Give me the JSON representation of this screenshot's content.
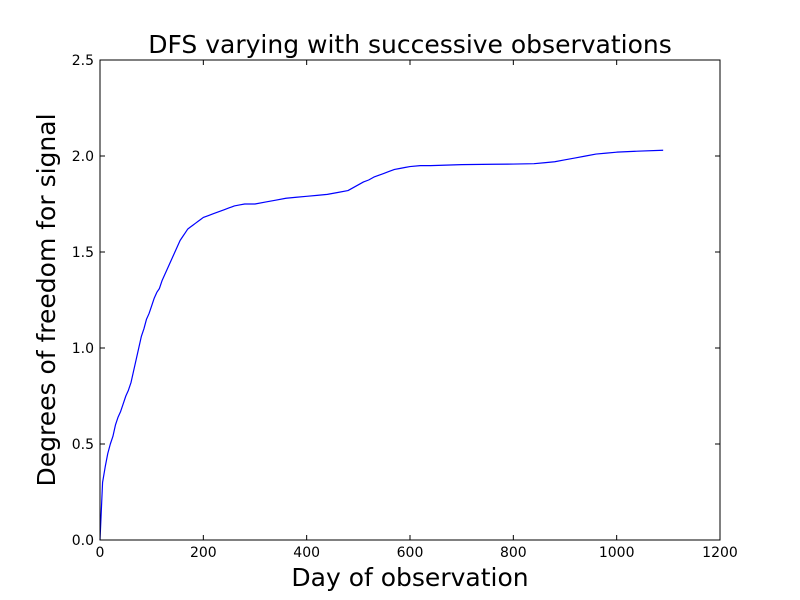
{
  "chart_data": {
    "type": "line",
    "title": "DFS varying with successive observations",
    "xlabel": "Day of observation",
    "ylabel": "Degrees of freedom for signal",
    "xlim": [
      0,
      1200
    ],
    "ylim": [
      0,
      2.5
    ],
    "xticks": [
      0,
      200,
      400,
      600,
      800,
      1000,
      1200
    ],
    "xtick_labels": [
      "0",
      "200",
      "400",
      "600",
      "800",
      "1000",
      "1200"
    ],
    "yticks": [
      0,
      0.5,
      1.0,
      1.5,
      2.0,
      2.5
    ],
    "ytick_labels": [
      "0.0",
      "0.5",
      "1.0",
      "1.5",
      "2.0",
      "2.5"
    ],
    "grid": false,
    "colors": {
      "line": "#0000ff",
      "axes": "#000000",
      "background": "#ffffff"
    },
    "series": [
      {
        "x": [
          0,
          2,
          5,
          10,
          15,
          20,
          25,
          30,
          35,
          40,
          45,
          50,
          55,
          60,
          65,
          70,
          75,
          80,
          85,
          90,
          95,
          100,
          105,
          110,
          115,
          120,
          125,
          130,
          135,
          140,
          145,
          150,
          155,
          160,
          165,
          170,
          175,
          180,
          185,
          190,
          195,
          200,
          210,
          220,
          230,
          240,
          250,
          255,
          260,
          270,
          280,
          300,
          320,
          340,
          360,
          380,
          400,
          420,
          440,
          460,
          480,
          490,
          500,
          510,
          520,
          530,
          540,
          550,
          560,
          570,
          580,
          590,
          600,
          620,
          640,
          700,
          760,
          800,
          840,
          860,
          880,
          900,
          920,
          940,
          960,
          980,
          1000,
          1040,
          1090
        ],
        "y": [
          0.0,
          0.12,
          0.3,
          0.38,
          0.45,
          0.5,
          0.54,
          0.6,
          0.64,
          0.67,
          0.71,
          0.75,
          0.78,
          0.82,
          0.88,
          0.94,
          1.0,
          1.06,
          1.1,
          1.15,
          1.18,
          1.22,
          1.26,
          1.29,
          1.31,
          1.35,
          1.38,
          1.41,
          1.44,
          1.47,
          1.5,
          1.53,
          1.56,
          1.58,
          1.6,
          1.62,
          1.63,
          1.64,
          1.65,
          1.66,
          1.67,
          1.68,
          1.69,
          1.7,
          1.71,
          1.72,
          1.73,
          1.735,
          1.74,
          1.745,
          1.75,
          1.75,
          1.76,
          1.77,
          1.78,
          1.785,
          1.79,
          1.795,
          1.8,
          1.81,
          1.82,
          1.835,
          1.85,
          1.865,
          1.875,
          1.89,
          1.9,
          1.91,
          1.92,
          1.93,
          1.935,
          1.94,
          1.945,
          1.95,
          1.95,
          1.955,
          1.957,
          1.958,
          1.96,
          1.965,
          1.97,
          1.98,
          1.99,
          2.0,
          2.01,
          2.015,
          2.02,
          2.025,
          2.03
        ]
      }
    ]
  }
}
